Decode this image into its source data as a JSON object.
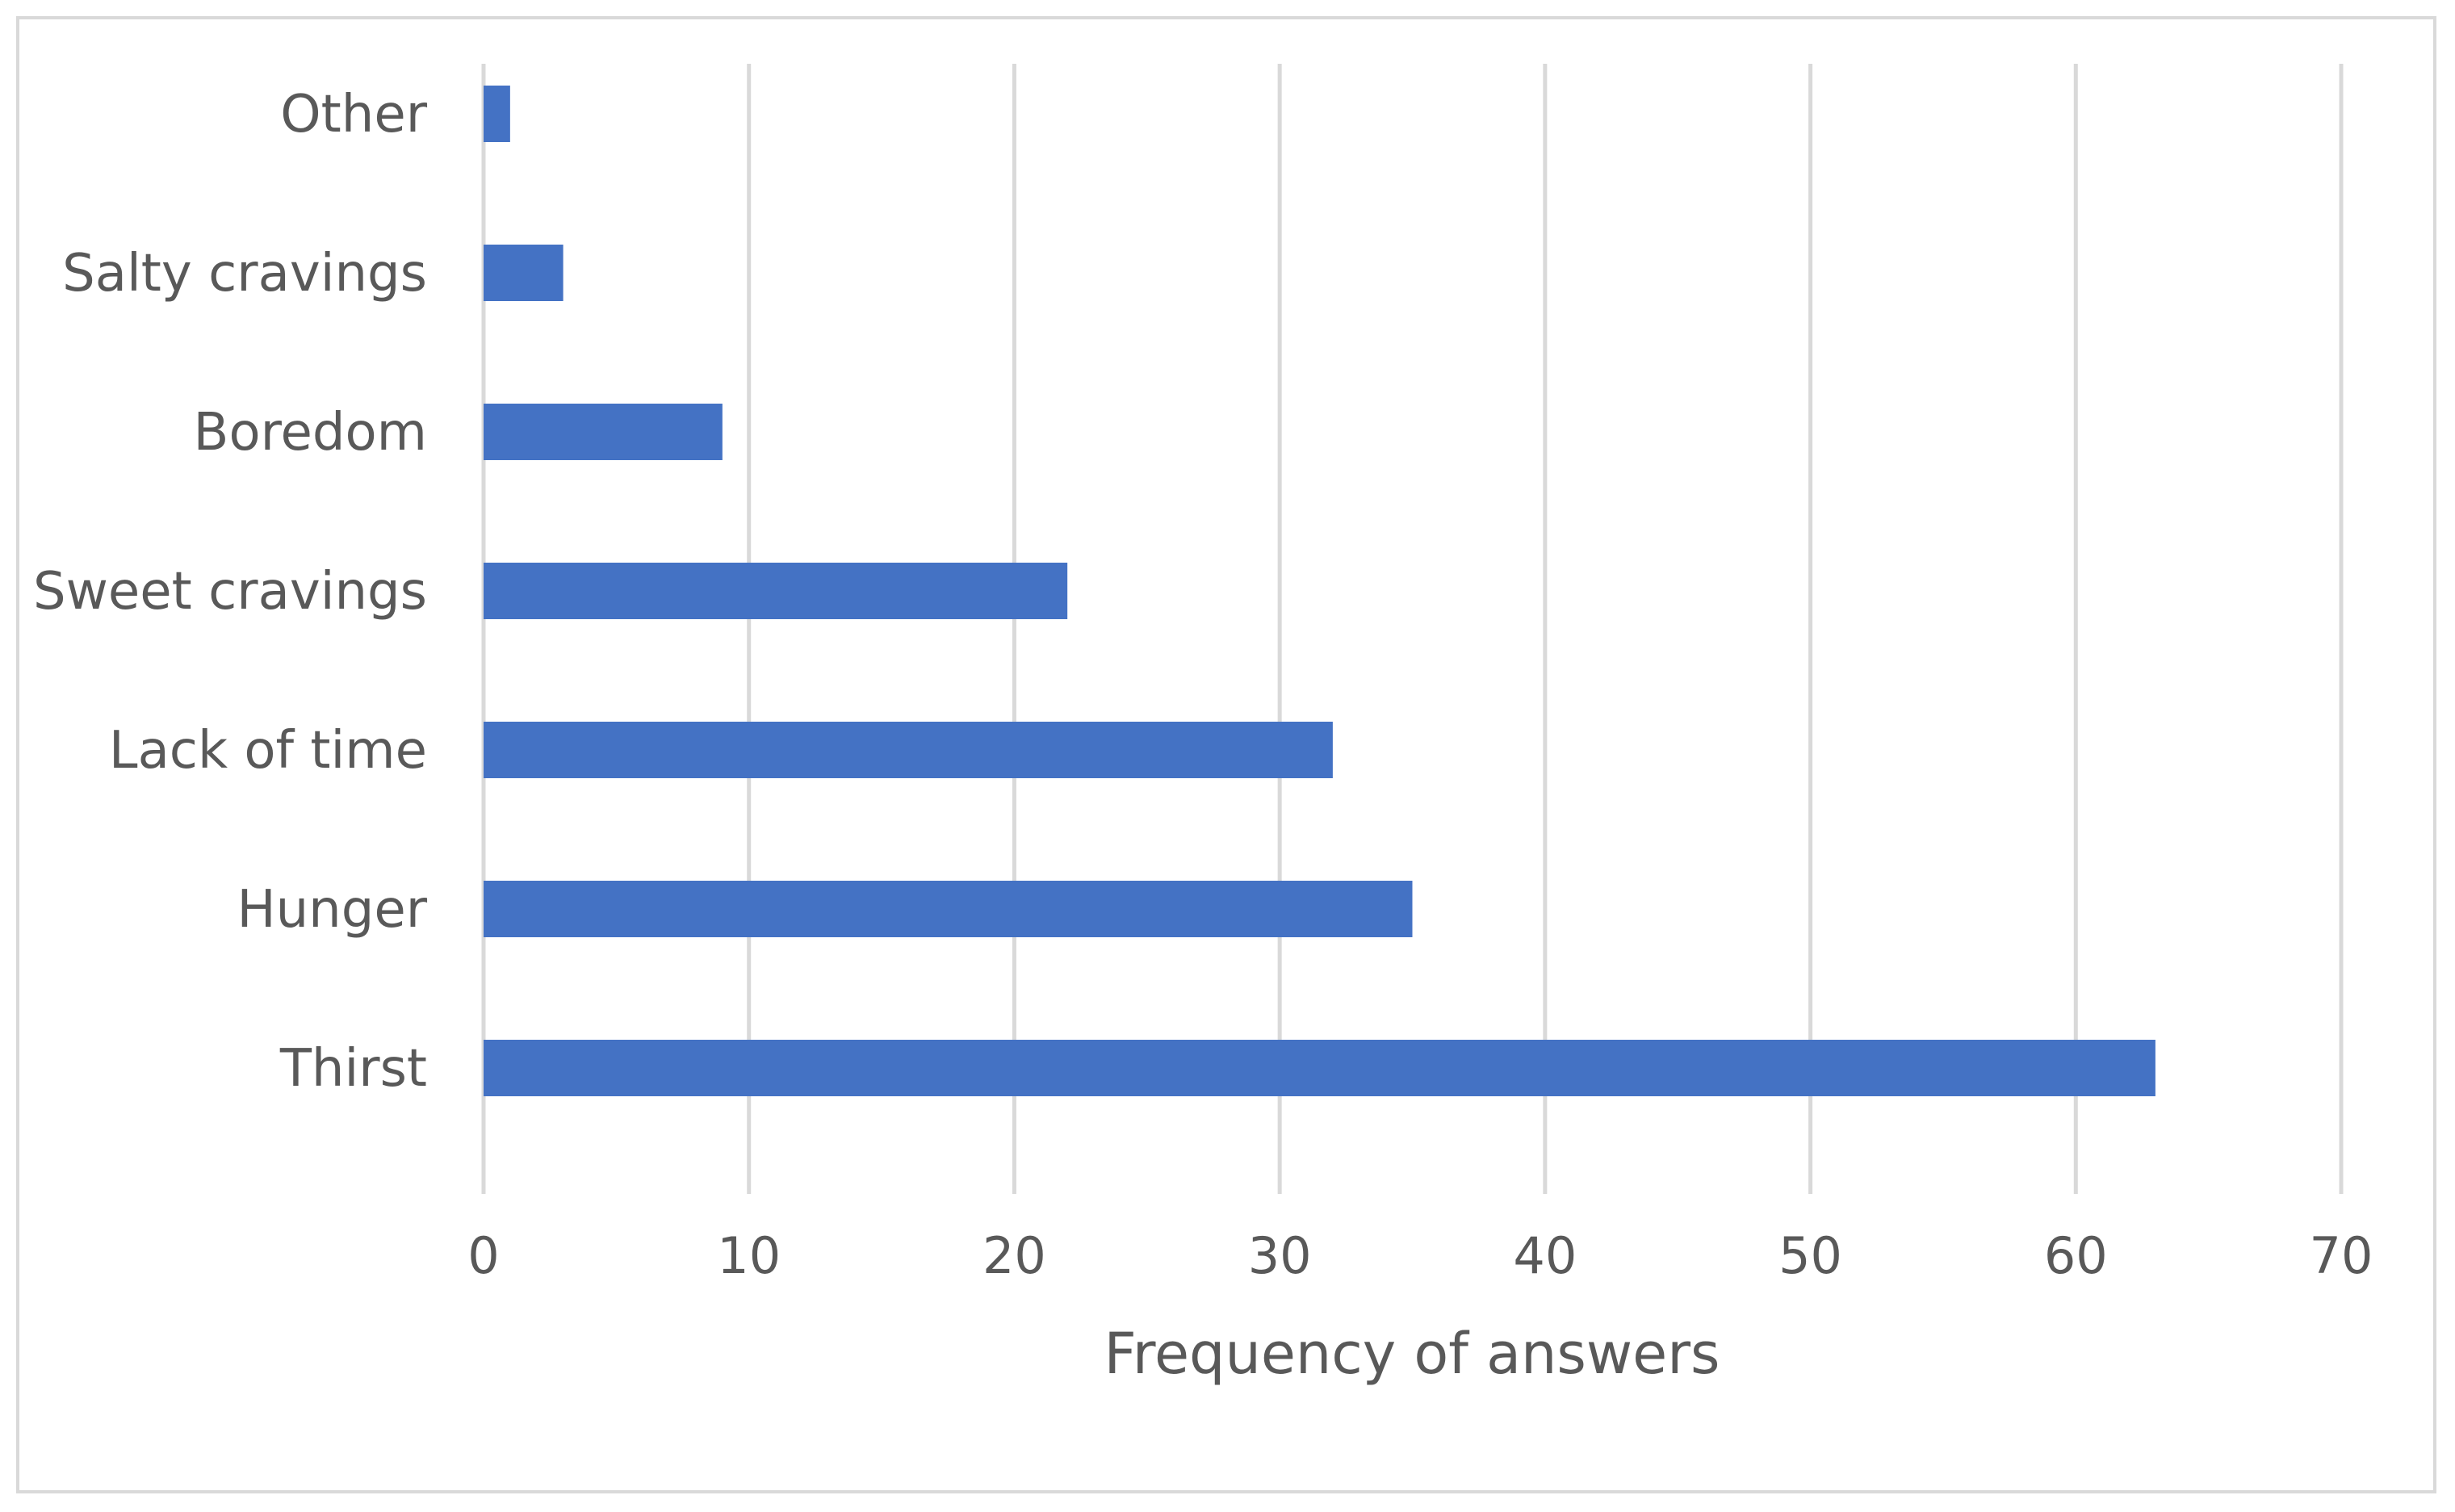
{
  "chart_data": {
    "type": "bar",
    "orientation": "horizontal",
    "categories": [
      "Other",
      "Salty cravings",
      "Boredom",
      "Sweet cravings",
      "Lack of time",
      "Hunger",
      "Thirst"
    ],
    "values": [
      1,
      3,
      9,
      22,
      32,
      35,
      63
    ],
    "xlabel": "Frequency of answers",
    "ylabel": "",
    "xlim": [
      0,
      70
    ],
    "xticks": [
      0,
      10,
      20,
      30,
      40,
      50,
      60,
      70
    ],
    "grid": "vertical",
    "legend": "none",
    "bar_color": "#4472c4"
  }
}
